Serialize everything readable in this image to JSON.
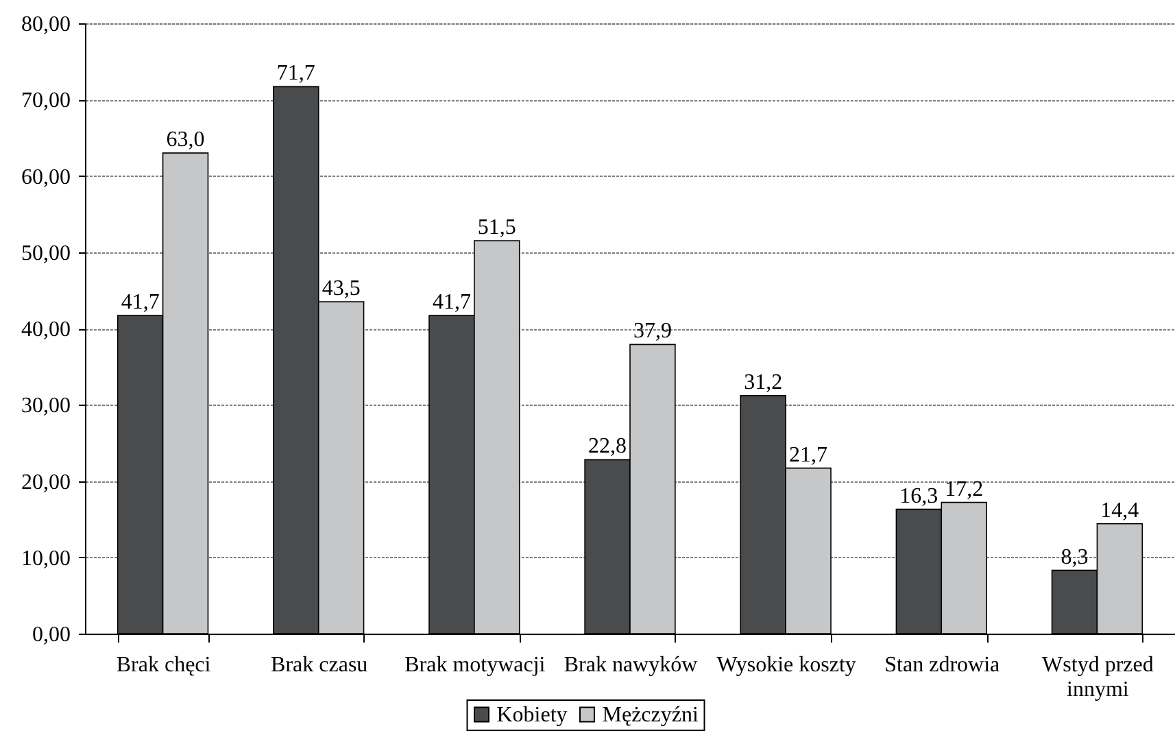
{
  "chart_data": {
    "type": "bar",
    "categories": [
      "Brak chęci",
      "Brak czasu",
      "Brak motywacji",
      "Brak nawyków",
      "Wysokie koszty",
      "Stan zdrowia",
      "Wstyd przed innymi"
    ],
    "series": [
      {
        "name": "Kobiety",
        "color": "#4a4b4d",
        "values": [
          41.7,
          71.7,
          41.7,
          22.8,
          31.2,
          16.3,
          8.3
        ],
        "value_labels": [
          "41,7",
          "71,7",
          "41,7",
          "22,8",
          "31,2",
          "16,3",
          "8,3"
        ]
      },
      {
        "name": "Mężczyźni",
        "color": "#c6c7c9",
        "values": [
          63.0,
          43.5,
          51.5,
          37.9,
          21.7,
          17.2,
          14.4
        ],
        "value_labels": [
          "63,0",
          "43,5",
          "51,5",
          "37,9",
          "21,7",
          "17,2",
          "14,4"
        ]
      }
    ],
    "ylim": [
      0,
      80
    ],
    "yticks": [
      {
        "value": 0,
        "label": "0,00"
      },
      {
        "value": 10,
        "label": "10,00"
      },
      {
        "value": 20,
        "label": "20,00"
      },
      {
        "value": 30,
        "label": "30,00"
      },
      {
        "value": 40,
        "label": "40,00"
      },
      {
        "value": 50,
        "label": "50,00"
      },
      {
        "value": 60,
        "label": "60,00"
      },
      {
        "value": 70,
        "label": "70,00"
      },
      {
        "value": 80,
        "label": "80,00"
      }
    ],
    "grid": "y",
    "legend": "bottom"
  }
}
